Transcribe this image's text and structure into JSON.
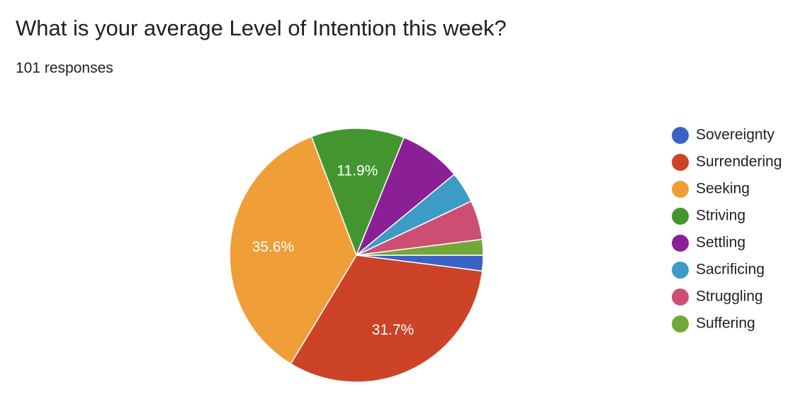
{
  "chart_data": {
    "type": "pie",
    "title": "What is your average Level of Intention this week?",
    "subtitle": "101 responses",
    "categories": [
      "Sovereignty",
      "Surrendering",
      "Seeking",
      "Striving",
      "Settling",
      "Sacrificing",
      "Struggling",
      "Suffering"
    ],
    "values": [
      2,
      31.7,
      35.6,
      11.9,
      7.9,
      4,
      5,
      2
    ],
    "value_labels": [
      null,
      "31.7%",
      "35.6%",
      "11.9%",
      null,
      null,
      null,
      null
    ],
    "colors": [
      "#3b63c7",
      "#cc4327",
      "#f09e37",
      "#43962f",
      "#8b1f96",
      "#3d9bc6",
      "#cc4f73",
      "#72a93a"
    ],
    "legend": "right"
  }
}
